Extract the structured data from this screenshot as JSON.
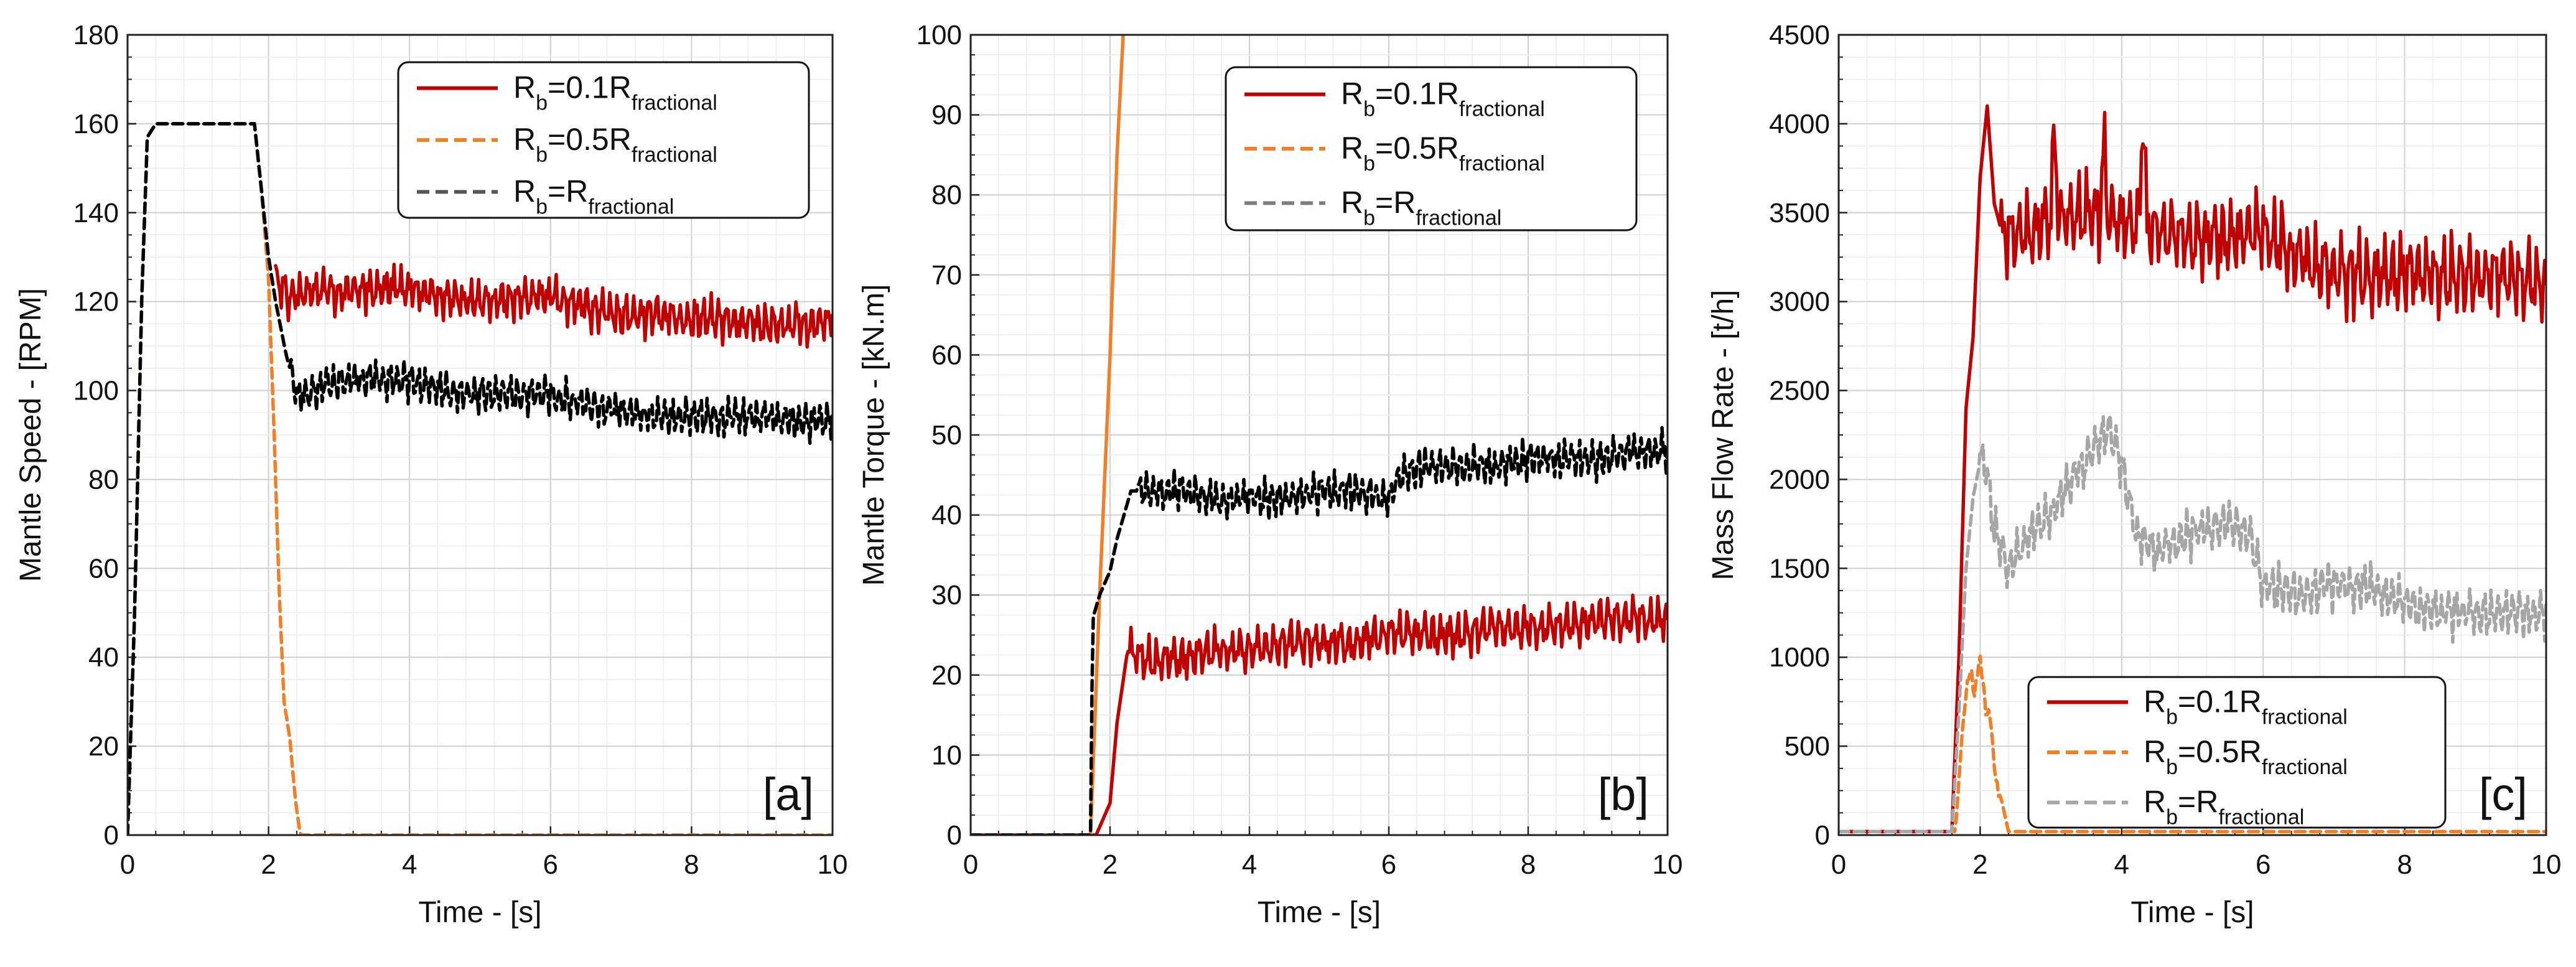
{
  "colors": {
    "red": "#c00000",
    "orange": "#f07f2a",
    "black": "#000000",
    "gray": "#a6a6a6",
    "grid_major": "#cfcfcf",
    "grid_minor": "#ececec"
  },
  "chart_data": [
    {
      "id": "a",
      "type": "line",
      "panel_label": "[a]",
      "xlabel": "Time - [s]",
      "ylabel": "Mantle Speed - [RPM]",
      "xlim": [
        0,
        10
      ],
      "ylim": [
        0,
        180
      ],
      "xticks": [
        "0",
        "2",
        "4",
        "6",
        "8",
        "10"
      ],
      "yticks": [
        "0",
        "20",
        "40",
        "60",
        "80",
        "100",
        "120",
        "140",
        "160",
        "180"
      ],
      "legend_position": "top-right",
      "legend": [
        {
          "base": "R",
          "sub": "b",
          "eq": "=0.1R",
          "tail": "fractional",
          "color": "#c00000",
          "dash": "solid"
        },
        {
          "base": "R",
          "sub": "b",
          "eq": "=0.5R",
          "tail": "fractional",
          "color": "#f07f2a",
          "dash": "dashed"
        },
        {
          "base": "R",
          "sub": "b",
          "eq": "=R",
          "tail": "fractional",
          "color": "#555555",
          "dash": "dashed"
        }
      ],
      "series": [
        {
          "name": "Rb=0.1Rfractional",
          "color": "#c00000",
          "dash": "solid",
          "x": [
            2.1,
            2.3,
            2.6,
            3.0,
            3.5,
            4.0,
            4.5,
            5.0,
            5.5,
            6.0,
            6.5,
            7.0,
            7.5,
            8.0,
            8.5,
            9.0,
            9.5,
            10.0
          ],
          "y": [
            125,
            121,
            123,
            122,
            123,
            123,
            121,
            120,
            121,
            121,
            119,
            117,
            117,
            116,
            116,
            115,
            115,
            116
          ],
          "noise": {
            "amp": 5,
            "period": 0.11
          }
        },
        {
          "name": "Rb=0.5Rfractional",
          "color": "#f07f2a",
          "dash": "dashed",
          "x": [
            0,
            0.1,
            0.2,
            0.28,
            0.4,
            1.0,
            1.8,
            1.9,
            2.0,
            2.08,
            2.15,
            2.22,
            2.3,
            2.38,
            2.45,
            3.0,
            10.0
          ],
          "y": [
            0,
            50,
            120,
            157,
            160,
            160,
            160,
            145,
            125,
            90,
            55,
            30,
            22,
            8,
            0,
            0,
            0
          ]
        },
        {
          "name": "Rb=Rfractional",
          "color": "#000000",
          "dash": "dashed",
          "x": [
            0,
            0.1,
            0.2,
            0.28,
            0.4,
            1.0,
            1.8,
            1.9,
            2.0,
            2.1,
            2.25,
            2.4,
            3.0,
            3.5,
            4.0,
            4.5,
            5.0,
            5.5,
            6.0,
            6.5,
            7.0,
            7.5,
            8.0,
            8.5,
            9.0,
            9.5,
            10.0
          ],
          "y": [
            0,
            50,
            120,
            157,
            160,
            160,
            160,
            145,
            130,
            120,
            108,
            99,
            102,
            103,
            102,
            100,
            99,
            99,
            99,
            97,
            95,
            94,
            94,
            94,
            94,
            93,
            93
          ],
          "noise": {
            "amp": 4.5,
            "period": 0.1,
            "from": 2.3
          }
        }
      ]
    },
    {
      "id": "b",
      "type": "line",
      "panel_label": "[b]",
      "xlabel": "Time - [s]",
      "ylabel": "Mantle Torque - [kN.m]",
      "xlim": [
        0,
        10
      ],
      "ylim": [
        0,
        100
      ],
      "xticks": [
        "0",
        "2",
        "4",
        "6",
        "8",
        "10"
      ],
      "yticks": [
        "0",
        "10",
        "20",
        "30",
        "40",
        "50",
        "60",
        "70",
        "80",
        "90",
        "100"
      ],
      "legend_position": "top-right",
      "legend": [
        {
          "base": "R",
          "sub": "b",
          "eq": "=0.1R",
          "tail": "fractional",
          "color": "#c00000",
          "dash": "solid"
        },
        {
          "base": "R",
          "sub": "b",
          "eq": "=0.5R",
          "tail": "fractional",
          "color": "#f07f2a",
          "dash": "dashed"
        },
        {
          "base": "R",
          "sub": "b",
          "eq": "=R",
          "tail": "fractional",
          "color": "#7f7f7f",
          "dash": "dashed"
        }
      ],
      "series": [
        {
          "name": "Rb=0.1Rfractional",
          "color": "#c00000",
          "dash": "solid",
          "x": [
            0,
            1.7,
            1.8,
            1.9,
            2.0,
            2.1,
            2.25,
            2.5,
            3.0,
            3.5,
            4.0,
            4.5,
            5.0,
            5.5,
            6.0,
            6.5,
            7.0,
            7.5,
            8.0,
            8.5,
            9.0,
            9.5,
            10.0
          ],
          "y": [
            0,
            0,
            0,
            2,
            4,
            14,
            23,
            22,
            22,
            23,
            23,
            24,
            24,
            24,
            25,
            25,
            25,
            26,
            26,
            26,
            27,
            27,
            27
          ],
          "noise": {
            "amp": 2.8,
            "period": 0.12,
            "from": 2.3
          }
        },
        {
          "name": "Rb=0.5Rfractional",
          "color": "#f07f2a",
          "dash": "solid",
          "x": [
            1.72,
            1.85,
            2.0,
            2.1,
            2.2
          ],
          "y": [
            0,
            30,
            60,
            85,
            102
          ]
        },
        {
          "name": "Rb=Rfractional",
          "color": "#000000",
          "dash": "dashed",
          "x": [
            0,
            1.72,
            1.75,
            1.85,
            2.0,
            2.1,
            2.2,
            2.3,
            2.5,
            3.0,
            3.5,
            4.0,
            4.5,
            5.0,
            5.5,
            6.0,
            6.2,
            6.5,
            7.0,
            7.5,
            8.0,
            8.5,
            9.0,
            9.5,
            10.0
          ],
          "y": [
            0,
            0,
            27,
            30,
            33,
            37,
            40,
            43,
            43,
            43,
            42,
            42,
            42,
            43,
            43,
            42,
            45,
            46,
            46,
            46,
            47,
            47,
            47,
            48,
            48
          ],
          "noise": {
            "amp": 2.5,
            "period": 0.1,
            "from": 2.4
          }
        }
      ]
    },
    {
      "id": "c",
      "type": "line",
      "panel_label": "[c]",
      "xlabel": "Time - [s]",
      "ylabel": "Mass Flow Rate - [t/h]",
      "xlim": [
        0,
        10
      ],
      "ylim": [
        0,
        4500
      ],
      "xticks": [
        "0",
        "2",
        "4",
        "6",
        "8",
        "10"
      ],
      "yticks": [
        "0",
        "500",
        "1000",
        "1500",
        "2000",
        "2500",
        "3000",
        "3500",
        "4000",
        "4500"
      ],
      "legend_position": "bottom-center",
      "legend": [
        {
          "base": "R",
          "sub": "b",
          "eq": "=0.1R",
          "tail": "fractional",
          "color": "#c00000",
          "dash": "solid"
        },
        {
          "base": "R",
          "sub": "b",
          "eq": "=0.5R",
          "tail": "fractional",
          "color": "#f07f2a",
          "dash": "dashed"
        },
        {
          "base": "R",
          "sub": "b",
          "eq": "=R",
          "tail": "fractional",
          "color": "#a6a6a6",
          "dash": "dashed"
        }
      ],
      "series": [
        {
          "name": "Rb=0.1Rfractional",
          "color": "#c00000",
          "dash": "solid",
          "x": [
            0,
            1.6,
            1.7,
            1.8,
            1.9,
            2.0,
            2.1,
            2.2,
            2.3,
            2.5,
            3.0,
            3.5,
            4.0,
            4.5,
            5.0,
            5.5,
            6.0,
            6.5,
            7.0,
            7.5,
            8.0,
            8.5,
            9.0,
            9.5,
            10.0
          ],
          "y": [
            20,
            20,
            1000,
            2400,
            2800,
            3700,
            4100,
            3550,
            3400,
            3350,
            3450,
            3500,
            3450,
            3400,
            3350,
            3350,
            3400,
            3250,
            3150,
            3150,
            3150,
            3150,
            3150,
            3150,
            3100
          ],
          "noise": {
            "amp": 230,
            "period": 0.12,
            "from": 2.3
          },
          "spikes": [
            {
              "x": 3.05,
              "y": 3980
            },
            {
              "x": 3.75,
              "y": 3900
            },
            {
              "x": 4.3,
              "y": 4030
            }
          ]
        },
        {
          "name": "Rb=0.5Rfractional",
          "color": "#f07f2a",
          "dash": "dashed",
          "x": [
            0,
            1.65,
            1.75,
            1.85,
            1.92,
            2.0,
            2.08,
            2.15,
            2.22,
            2.3,
            2.4,
            10.0
          ],
          "y": [
            20,
            20,
            600,
            950,
            800,
            1000,
            700,
            650,
            300,
            200,
            20,
            20
          ],
          "noise": {
            "amp": 40,
            "period": 0.06,
            "from": 1.8,
            "to": 2.3
          }
        },
        {
          "name": "Rb=Rfractional",
          "color": "#a6a6a6",
          "dash": "dashed",
          "x": [
            0,
            1.6,
            1.7,
            1.8,
            1.9,
            2.0,
            2.1,
            2.2,
            2.4,
            2.7,
            3.0,
            3.3,
            3.6,
            3.8,
            4.0,
            4.2,
            4.5,
            5.0,
            5.5,
            5.8,
            6.0,
            6.5,
            7.0,
            7.5,
            8.0,
            8.5,
            9.0,
            9.5,
            10.0
          ],
          "y": [
            20,
            20,
            700,
            1500,
            1900,
            2100,
            2050,
            1700,
            1500,
            1700,
            1800,
            2000,
            2150,
            2300,
            2100,
            1700,
            1600,
            1700,
            1750,
            1700,
            1400,
            1350,
            1400,
            1400,
            1300,
            1250,
            1250,
            1250,
            1250
          ],
          "noise": {
            "amp": 140,
            "period": 0.1,
            "from": 2.0
          }
        }
      ]
    }
  ]
}
